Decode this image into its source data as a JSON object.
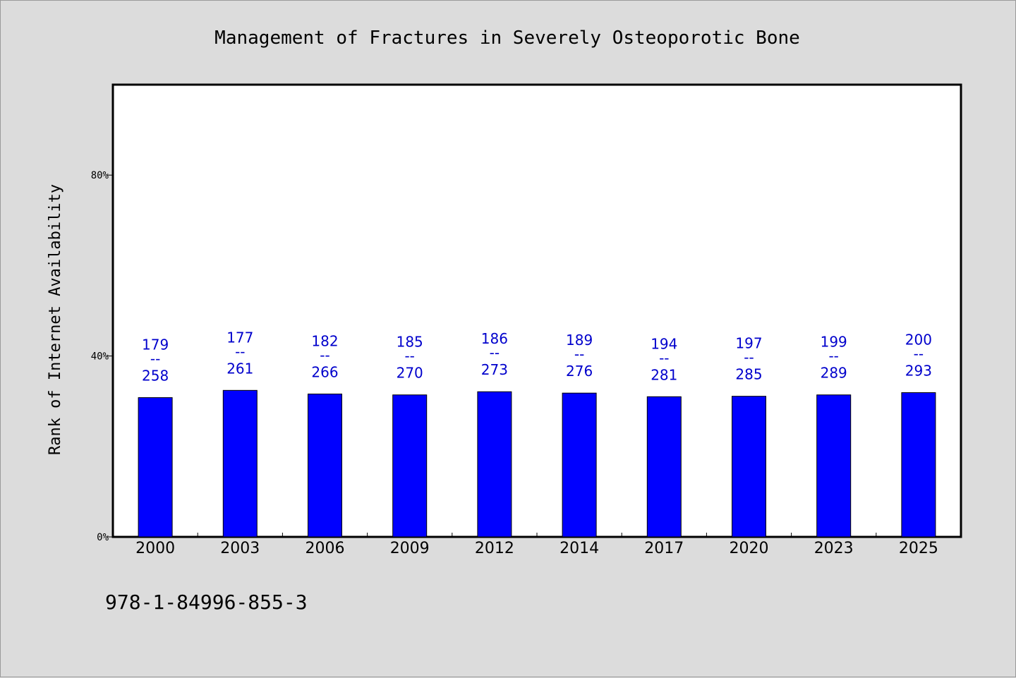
{
  "chart_data": {
    "type": "bar",
    "title": "Management of Fractures in Severely Osteoporotic Bone",
    "ylabel": "Rank of Internet Availability",
    "xlabel": "",
    "categories": [
      "2000",
      "2003",
      "2006",
      "2009",
      "2012",
      "2014",
      "2017",
      "2020",
      "2023",
      "2025"
    ],
    "values": [
      30.8,
      32.4,
      31.6,
      31.4,
      32.1,
      31.8,
      31.0,
      31.1,
      31.4,
      31.9
    ],
    "data_labels": [
      {
        "top": "179",
        "sep": "--",
        "bottom": "258"
      },
      {
        "top": "177",
        "sep": "--",
        "bottom": "261"
      },
      {
        "top": "182",
        "sep": "--",
        "bottom": "266"
      },
      {
        "top": "185",
        "sep": "--",
        "bottom": "270"
      },
      {
        "top": "186",
        "sep": "--",
        "bottom": "273"
      },
      {
        "top": "189",
        "sep": "--",
        "bottom": "276"
      },
      {
        "top": "194",
        "sep": "--",
        "bottom": "281"
      },
      {
        "top": "197",
        "sep": "--",
        "bottom": "285"
      },
      {
        "top": "199",
        "sep": "--",
        "bottom": "289"
      },
      {
        "top": "200",
        "sep": "--",
        "bottom": "293"
      }
    ],
    "ylim": [
      0,
      100
    ],
    "yticks": [
      0,
      40,
      80
    ],
    "ytick_labels": [
      "0%",
      "40%",
      "80%"
    ],
    "grid": false,
    "legend": "none",
    "bar_color": "#0000ff",
    "label_color": "#0000cc"
  },
  "footer": {
    "isbn": "978-1-84996-855-3"
  },
  "colors": {
    "background": "#dcdcdc",
    "plot_background": "#ffffff",
    "bar": "#0000ff"
  }
}
